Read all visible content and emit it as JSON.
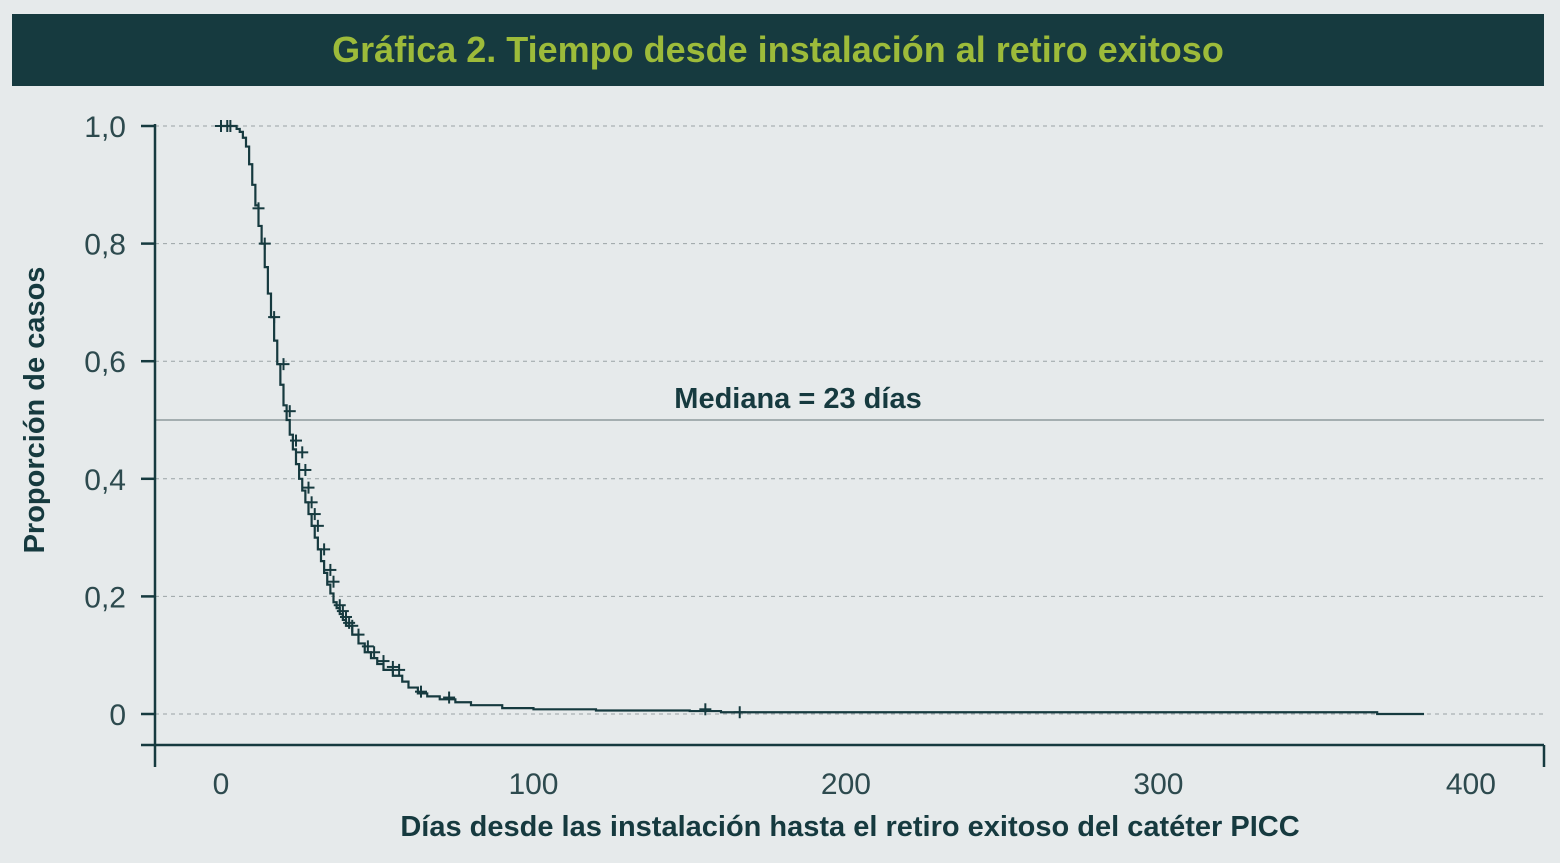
{
  "chart_data": {
    "type": "line",
    "subtype": "kaplan-meier step curve",
    "title": "Gráfica 2. Tiempo desde instalación al retiro exitoso",
    "xlabel": "Días desde las instalación hasta el retiro exitoso del catéter PICC",
    "ylabel": "Proporción de casos",
    "xlim": [
      -20,
      420
    ],
    "ylim": [
      -0.055,
      1.0
    ],
    "x_ticks": [
      0,
      100,
      200,
      300,
      400
    ],
    "x_tick_labels": [
      "0",
      "100",
      "200",
      "300",
      "400"
    ],
    "y_ticks": [
      0,
      0.2,
      0.4,
      0.6,
      0.8,
      1.0
    ],
    "y_tick_labels": [
      "0",
      "0,2",
      "0,4",
      "0,6",
      "0,8",
      "1,0"
    ],
    "grid": "horizontal dashed",
    "median_line": {
      "y": 0.5,
      "label": "Mediana = 23 días"
    },
    "series": [
      {
        "x": [
          0,
          3,
          5,
          6,
          7,
          8,
          9,
          10,
          11,
          12,
          13,
          14,
          15,
          16,
          17,
          18,
          19,
          20,
          21,
          22,
          23,
          24,
          25,
          26,
          27,
          28,
          29,
          30,
          31,
          32,
          33,
          34,
          35,
          36,
          37,
          38,
          39,
          40,
          42,
          44,
          46,
          48,
          50,
          52,
          55,
          58,
          60,
          63,
          66,
          70,
          75,
          80,
          90,
          100,
          120,
          150,
          160,
          200,
          250,
          300,
          350,
          370,
          385
        ],
        "y": [
          1.0,
          1.0,
          0.995,
          0.99,
          0.98,
          0.965,
          0.935,
          0.9,
          0.865,
          0.83,
          0.8,
          0.76,
          0.715,
          0.675,
          0.635,
          0.595,
          0.56,
          0.525,
          0.5,
          0.475,
          0.45,
          0.425,
          0.4,
          0.38,
          0.36,
          0.34,
          0.32,
          0.3,
          0.28,
          0.26,
          0.24,
          0.22,
          0.205,
          0.19,
          0.18,
          0.17,
          0.16,
          0.15,
          0.135,
          0.12,
          0.105,
          0.095,
          0.085,
          0.075,
          0.065,
          0.055,
          0.045,
          0.035,
          0.03,
          0.025,
          0.02,
          0.015,
          0.01,
          0.008,
          0.006,
          0.005,
          0.003,
          0.003,
          0.003,
          0.003,
          0.003,
          0.0,
          0.0
        ]
      }
    ],
    "censor_marks": [
      {
        "x": 0,
        "y": 1.0
      },
      {
        "x": 2,
        "y": 1.0
      },
      {
        "x": 3,
        "y": 1.0
      },
      {
        "x": 12,
        "y": 0.86
      },
      {
        "x": 14,
        "y": 0.8
      },
      {
        "x": 17,
        "y": 0.675
      },
      {
        "x": 20,
        "y": 0.595
      },
      {
        "x": 22,
        "y": 0.515
      },
      {
        "x": 24,
        "y": 0.465
      },
      {
        "x": 26,
        "y": 0.445
      },
      {
        "x": 27,
        "y": 0.415
      },
      {
        "x": 28,
        "y": 0.385
      },
      {
        "x": 29,
        "y": 0.36
      },
      {
        "x": 30,
        "y": 0.34
      },
      {
        "x": 31,
        "y": 0.32
      },
      {
        "x": 33,
        "y": 0.28
      },
      {
        "x": 35,
        "y": 0.245
      },
      {
        "x": 36,
        "y": 0.225
      },
      {
        "x": 38,
        "y": 0.185
      },
      {
        "x": 39,
        "y": 0.175
      },
      {
        "x": 40,
        "y": 0.165
      },
      {
        "x": 41,
        "y": 0.155
      },
      {
        "x": 42,
        "y": 0.15
      },
      {
        "x": 44,
        "y": 0.135
      },
      {
        "x": 47,
        "y": 0.115
      },
      {
        "x": 49,
        "y": 0.105
      },
      {
        "x": 52,
        "y": 0.09
      },
      {
        "x": 55,
        "y": 0.08
      },
      {
        "x": 57,
        "y": 0.075
      },
      {
        "x": 64,
        "y": 0.038
      },
      {
        "x": 73,
        "y": 0.028
      },
      {
        "x": 155,
        "y": 0.008
      },
      {
        "x": 166,
        "y": 0.003
      }
    ]
  },
  "colors": {
    "background": "#e6eaeb",
    "title_bar": "#163a3f",
    "title_text": "#9dbb3a",
    "ink": "#163a3f",
    "grid": "#9aa3a6",
    "median_line": "#7d8a8d"
  }
}
